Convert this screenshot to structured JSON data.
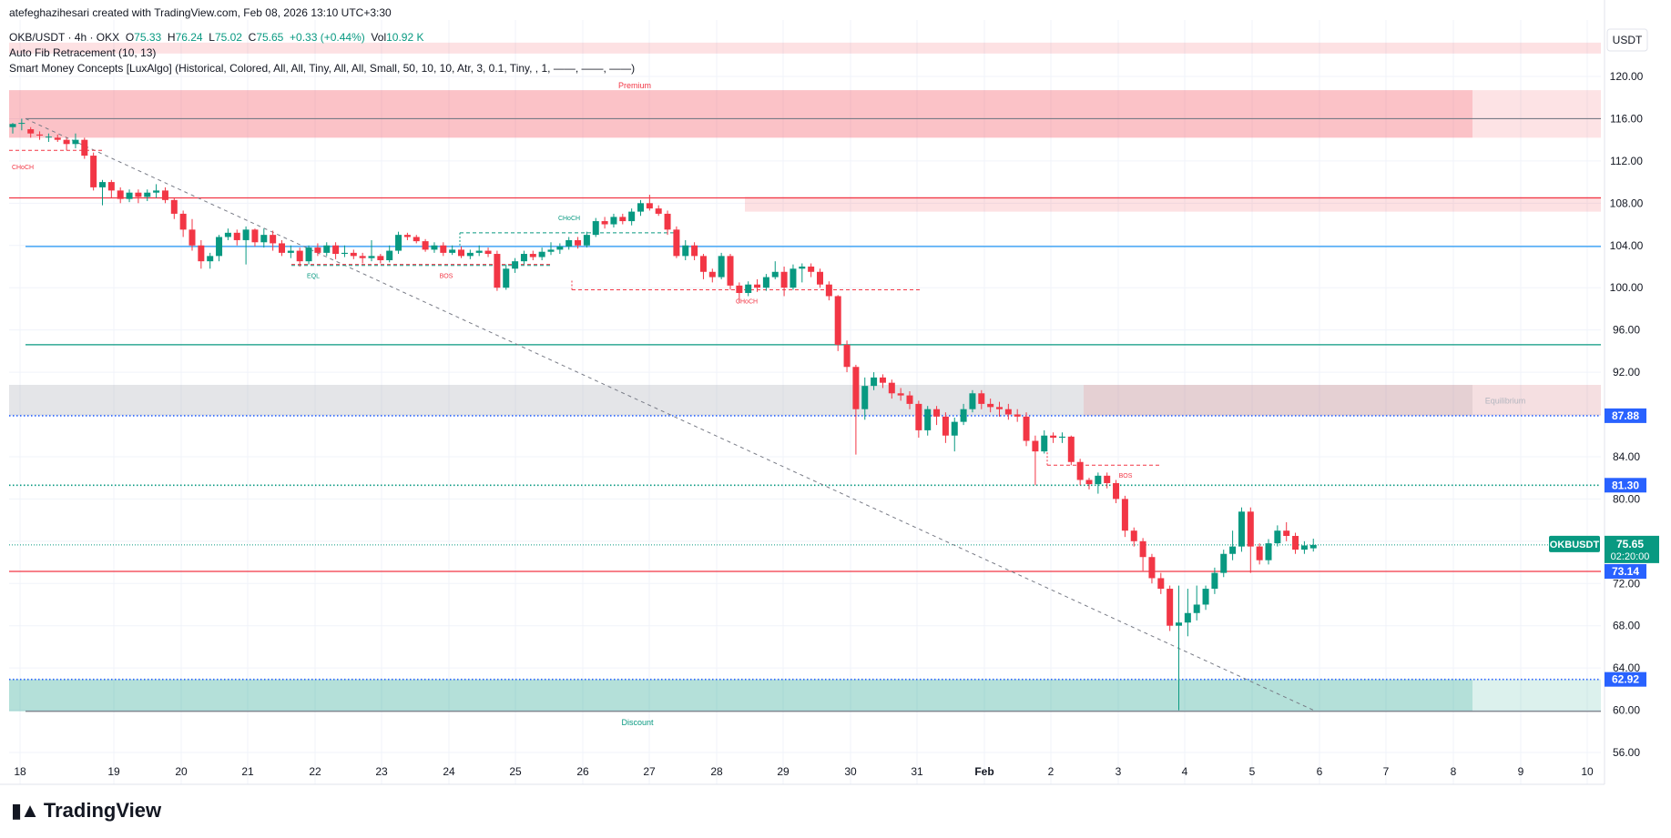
{
  "watermark": "atefeghazihesari created with TradingView.com, Feb 08, 2026 13:10 UTC+3:30",
  "legend": {
    "symbol": "OKB/USDT · 4h · OKX",
    "o_label": "O",
    "o": "75.33",
    "h_label": "H",
    "h": "76.24",
    "l_label": "L",
    "l": "75.02",
    "c_label": "C",
    "c": "75.65",
    "change": "+0.33 (+0.44%)",
    "vol_label": "Vol",
    "vol": "10.92 K",
    "indicator1": "Auto Fib Retracement (10, 13)",
    "indicator2": "Smart Money Concepts [LuxAlgo] (Historical, Colored, All, All, Tiny, All, All, Small, 50, 10, 10, Atr, 3, 0.1, Tiny, , 1, ——, ——, ——)"
  },
  "brand": {
    "name": "TradingView"
  },
  "colors": {
    "up": "#089981",
    "down": "#f23645",
    "premium": "#f23645",
    "discount": "#089981",
    "axis": "#131722"
  },
  "chart_data": {
    "type": "candlestick",
    "symbol": "OKB/USDT",
    "timeframe": "4h",
    "currency": "USDT",
    "ylim": [
      54,
      124
    ],
    "y_ticks": [
      56,
      60,
      64,
      68,
      72,
      76,
      80,
      84,
      88,
      92,
      96,
      100,
      104,
      108,
      112,
      116,
      120
    ],
    "x_ticks": [
      "18",
      "19",
      "20",
      "21",
      "22",
      "23",
      "24",
      "25",
      "26",
      "27",
      "28",
      "29",
      "30",
      "31",
      "Feb",
      "2",
      "3",
      "4",
      "5",
      "6",
      "7",
      "8",
      "9",
      "10"
    ],
    "candles": [
      [
        115.2,
        115.5,
        114.6,
        115.6
      ],
      [
        115.6,
        115.6,
        114.9,
        116.0
      ],
      [
        115.0,
        114.6,
        114.2,
        115.2
      ],
      [
        114.5,
        114.4,
        114.0,
        114.8
      ],
      [
        114.3,
        114.3,
        113.8,
        114.6
      ],
      [
        114.2,
        114.0,
        113.8,
        114.5
      ],
      [
        114.0,
        113.6,
        113.0,
        114.2
      ],
      [
        113.6,
        114.0,
        113.2,
        114.6
      ],
      [
        114.0,
        112.5,
        112.2,
        114.2
      ],
      [
        112.5,
        109.5,
        109.2,
        112.8
      ],
      [
        109.5,
        110.0,
        107.8,
        110.2
      ],
      [
        110.0,
        109.2,
        108.5,
        110.2
      ],
      [
        109.2,
        108.4,
        108.0,
        109.5
      ],
      [
        108.4,
        109.0,
        108.1,
        109.3
      ],
      [
        109.0,
        108.6,
        108.0,
        109.3
      ],
      [
        108.6,
        109.0,
        108.2,
        109.3
      ],
      [
        109.0,
        109.2,
        108.5,
        109.8
      ],
      [
        109.2,
        108.3,
        108.0,
        109.5
      ],
      [
        108.3,
        107.0,
        106.5,
        108.5
      ],
      [
        107.0,
        105.5,
        104.8,
        107.3
      ],
      [
        105.5,
        104.0,
        103.5,
        106.5
      ],
      [
        104.0,
        102.5,
        101.8,
        104.5
      ],
      [
        102.5,
        103.0,
        101.8,
        103.3
      ],
      [
        103.0,
        104.8,
        102.5,
        105.0
      ],
      [
        104.8,
        105.2,
        104.5,
        105.6
      ],
      [
        105.2,
        104.5,
        104.0,
        105.5
      ],
      [
        104.5,
        105.5,
        102.2,
        105.8
      ],
      [
        105.5,
        104.3,
        103.9,
        105.6
      ],
      [
        104.3,
        105.0,
        103.8,
        105.6
      ],
      [
        105.0,
        104.2,
        103.5,
        105.4
      ],
      [
        104.2,
        103.3,
        103.0,
        104.5
      ],
      [
        103.3,
        103.5,
        102.8,
        104.0
      ],
      [
        103.5,
        102.5,
        102.0,
        103.8
      ],
      [
        102.5,
        103.8,
        102.2,
        104.0
      ],
      [
        103.8,
        103.3,
        103.0,
        104.2
      ],
      [
        103.3,
        104.0,
        103.0,
        104.3
      ],
      [
        104.0,
        103.2,
        102.7,
        104.3
      ],
      [
        103.2,
        103.3,
        102.9,
        104.0
      ],
      [
        103.3,
        103.0,
        102.7,
        103.6
      ],
      [
        103.0,
        102.8,
        102.3,
        103.3
      ],
      [
        102.8,
        103.0,
        102.5,
        104.5
      ],
      [
        103.0,
        102.6,
        102.3,
        103.2
      ],
      [
        102.6,
        103.5,
        102.4,
        104.0
      ],
      [
        103.5,
        105.0,
        103.2,
        105.3
      ],
      [
        105.0,
        104.8,
        104.5,
        105.2
      ],
      [
        104.8,
        104.4,
        104.2,
        105.0
      ],
      [
        104.4,
        103.6,
        103.4,
        104.6
      ],
      [
        103.6,
        104.0,
        103.3,
        104.3
      ],
      [
        104.0,
        103.3,
        103.0,
        104.3
      ],
      [
        103.3,
        103.6,
        103.1,
        104.0
      ],
      [
        103.6,
        103.0,
        102.8,
        103.9
      ],
      [
        103.0,
        103.3,
        102.7,
        103.6
      ],
      [
        103.3,
        103.5,
        103.0,
        104.0
      ],
      [
        103.5,
        103.2,
        102.9,
        103.8
      ],
      [
        103.2,
        100.0,
        99.7,
        103.5
      ],
      [
        100.0,
        101.8,
        99.8,
        102.2
      ],
      [
        101.8,
        102.5,
        101.4,
        102.8
      ],
      [
        102.5,
        103.2,
        102.2,
        103.5
      ],
      [
        103.2,
        102.9,
        102.6,
        103.5
      ],
      [
        102.9,
        103.4,
        102.6,
        103.8
      ],
      [
        103.4,
        103.6,
        103.1,
        104.3
      ],
      [
        103.6,
        103.9,
        103.2,
        104.2
      ],
      [
        103.9,
        104.5,
        103.6,
        104.8
      ],
      [
        104.5,
        104.0,
        103.7,
        104.8
      ],
      [
        104.0,
        105.0,
        103.8,
        105.3
      ],
      [
        105.0,
        106.3,
        104.8,
        106.6
      ],
      [
        106.3,
        106.0,
        105.6,
        106.7
      ],
      [
        106.0,
        106.7,
        105.7,
        107.0
      ],
      [
        106.7,
        106.3,
        106.0,
        107.0
      ],
      [
        106.3,
        107.2,
        105.9,
        107.5
      ],
      [
        107.2,
        108.0,
        106.8,
        108.3
      ],
      [
        108.0,
        107.5,
        107.3,
        108.8
      ],
      [
        107.5,
        107.0,
        106.8,
        107.8
      ],
      [
        107.0,
        105.5,
        105.0,
        107.3
      ],
      [
        105.5,
        103.0,
        102.8,
        105.8
      ],
      [
        103.0,
        104.0,
        102.6,
        104.5
      ],
      [
        104.0,
        103.0,
        102.6,
        104.3
      ],
      [
        103.0,
        101.5,
        100.8,
        103.2
      ],
      [
        101.5,
        101.0,
        100.5,
        101.8
      ],
      [
        101.0,
        103.0,
        100.8,
        103.3
      ],
      [
        103.0,
        100.2,
        99.8,
        103.2
      ],
      [
        100.2,
        99.5,
        98.6,
        100.5
      ],
      [
        99.5,
        100.3,
        99.2,
        100.6
      ],
      [
        100.3,
        100.0,
        99.6,
        100.8
      ],
      [
        100.0,
        101.0,
        99.7,
        101.3
      ],
      [
        101.0,
        101.5,
        100.8,
        102.5
      ],
      [
        101.5,
        100.0,
        99.2,
        102.0
      ],
      [
        100.0,
        101.8,
        99.8,
        102.2
      ],
      [
        101.8,
        102.0,
        100.5,
        102.3
      ],
      [
        102.0,
        101.5,
        101.0,
        102.3
      ],
      [
        101.5,
        100.3,
        100.0,
        101.8
      ],
      [
        100.3,
        99.2,
        98.8,
        100.6
      ],
      [
        99.2,
        94.6,
        94.0,
        99.3
      ],
      [
        94.6,
        92.5,
        92.0,
        95.0
      ],
      [
        92.5,
        88.5,
        84.2,
        92.7
      ],
      [
        88.5,
        90.7,
        87.5,
        91.5
      ],
      [
        90.7,
        91.5,
        90.3,
        92.0
      ],
      [
        91.5,
        91.0,
        90.5,
        91.8
      ],
      [
        91.0,
        90.0,
        89.5,
        91.3
      ],
      [
        90.0,
        89.8,
        89.3,
        90.5
      ],
      [
        89.8,
        89.0,
        88.5,
        90.2
      ],
      [
        89.0,
        86.5,
        85.8,
        89.3
      ],
      [
        86.5,
        88.5,
        86.0,
        88.8
      ],
      [
        88.5,
        87.8,
        87.0,
        88.8
      ],
      [
        87.8,
        86.0,
        85.3,
        88.2
      ],
      [
        86.0,
        87.3,
        84.5,
        87.7
      ],
      [
        87.3,
        88.5,
        87.0,
        89.0
      ],
      [
        88.5,
        90.0,
        88.2,
        90.3
      ],
      [
        90.0,
        89.0,
        88.5,
        90.3
      ],
      [
        89.0,
        88.7,
        88.2,
        89.5
      ],
      [
        88.7,
        88.5,
        87.8,
        89.2
      ],
      [
        88.5,
        88.0,
        87.5,
        89.0
      ],
      [
        88.0,
        87.8,
        87.3,
        88.5
      ],
      [
        87.8,
        85.5,
        85.0,
        88.2
      ],
      [
        85.5,
        84.5,
        81.3,
        86.0
      ],
      [
        84.5,
        86.0,
        84.3,
        86.5
      ],
      [
        86.0,
        85.8,
        85.3,
        86.3
      ],
      [
        85.8,
        85.9,
        85.3,
        86.3
      ],
      [
        85.9,
        83.5,
        83.2,
        86.0
      ],
      [
        83.5,
        81.8,
        81.3,
        83.8
      ],
      [
        81.8,
        81.4,
        80.9,
        82.0
      ],
      [
        81.4,
        82.2,
        80.5,
        82.5
      ],
      [
        82.2,
        81.5,
        81.0,
        82.5
      ],
      [
        81.5,
        80.0,
        79.6,
        81.8
      ],
      [
        80.0,
        77.0,
        76.4,
        80.3
      ],
      [
        77.0,
        76.0,
        75.5,
        77.3
      ],
      [
        76.0,
        74.5,
        73.2,
        76.3
      ],
      [
        74.5,
        72.5,
        72.0,
        74.8
      ],
      [
        72.5,
        71.5,
        71.0,
        73.0
      ],
      [
        71.5,
        68.0,
        67.5,
        71.8
      ],
      [
        68.0,
        68.3,
        60.0,
        71.8
      ],
      [
        68.3,
        69.2,
        67.0,
        71.5
      ],
      [
        69.2,
        70.0,
        68.5,
        71.8
      ],
      [
        70.0,
        71.5,
        69.5,
        71.8
      ],
      [
        71.5,
        73.0,
        71.0,
        73.5
      ],
      [
        73.0,
        74.8,
        72.6,
        75.2
      ],
      [
        74.8,
        75.5,
        74.2,
        77.0
      ],
      [
        75.5,
        78.8,
        75.0,
        79.2
      ],
      [
        78.8,
        75.5,
        73.0,
        79.2
      ],
      [
        75.5,
        74.2,
        73.8,
        75.8
      ],
      [
        74.2,
        75.8,
        73.8,
        76.2
      ],
      [
        75.8,
        77.0,
        75.5,
        77.5
      ],
      [
        77.0,
        76.5,
        76.0,
        77.8
      ],
      [
        76.5,
        75.2,
        74.8,
        76.8
      ],
      [
        75.2,
        75.6,
        74.8,
        76.0
      ],
      [
        75.33,
        75.65,
        75.02,
        76.24
      ]
    ],
    "price_labels": [
      {
        "label": "87.88",
        "value": 87.88,
        "color": "#2962ff"
      },
      {
        "label": "81.30",
        "value": 81.3,
        "color": "#2962ff"
      },
      {
        "label": "73.14",
        "value": 73.14,
        "color": "#2962ff"
      },
      {
        "label": "62.92",
        "value": 62.92,
        "color": "#2962ff"
      }
    ],
    "current_price": {
      "symbol": "OKBUSDT",
      "price": "75.65",
      "countdown": "02:20:00",
      "value": 75.65
    },
    "horizontal_lines": [
      {
        "value": 116.0,
        "color": "#787b86",
        "name": "fib-1"
      },
      {
        "value": 108.5,
        "color": "#f23645",
        "name": "fib-0.786"
      },
      {
        "value": 103.9,
        "color": "#2196f3",
        "name": "fib-0.618"
      },
      {
        "value": 94.6,
        "color": "#089981",
        "name": "fib-0.5"
      },
      {
        "value": 87.88,
        "color": "#2962ff",
        "name": "fib-0.382",
        "dotted": true
      },
      {
        "value": 81.3,
        "color": "#089981",
        "name": "fib-0.236",
        "dotted": true
      },
      {
        "value": 73.14,
        "color": "#f23645",
        "name": "red-line"
      },
      {
        "value": 62.92,
        "color": "#2962ff",
        "name": "fib-0.064",
        "dotted": true
      },
      {
        "value": 59.9,
        "color": "#787b86",
        "name": "fib-0"
      }
    ],
    "zones": [
      {
        "name": "premium-zone",
        "from": 114.2,
        "to": 118.7,
        "color": "#f23645",
        "label": "Premium"
      },
      {
        "name": "equilibrium-zone",
        "from": 87.88,
        "to": 90.8,
        "color": "#b2b5be",
        "label": "Equilibrium"
      },
      {
        "name": "discount-zone",
        "from": 59.9,
        "to": 62.92,
        "color": "#089981",
        "label": "Discount"
      }
    ],
    "annotations": [
      {
        "text": "CHoCH",
        "color": "#f23645"
      },
      {
        "text": "EQL",
        "color": "#089981"
      },
      {
        "text": "BOS",
        "color": "#f23645"
      },
      {
        "text": "CHoCH",
        "color": "#089981"
      },
      {
        "text": "CHoCH",
        "color": "#f23645"
      },
      {
        "text": "BOS",
        "color": "#f23645"
      }
    ]
  }
}
